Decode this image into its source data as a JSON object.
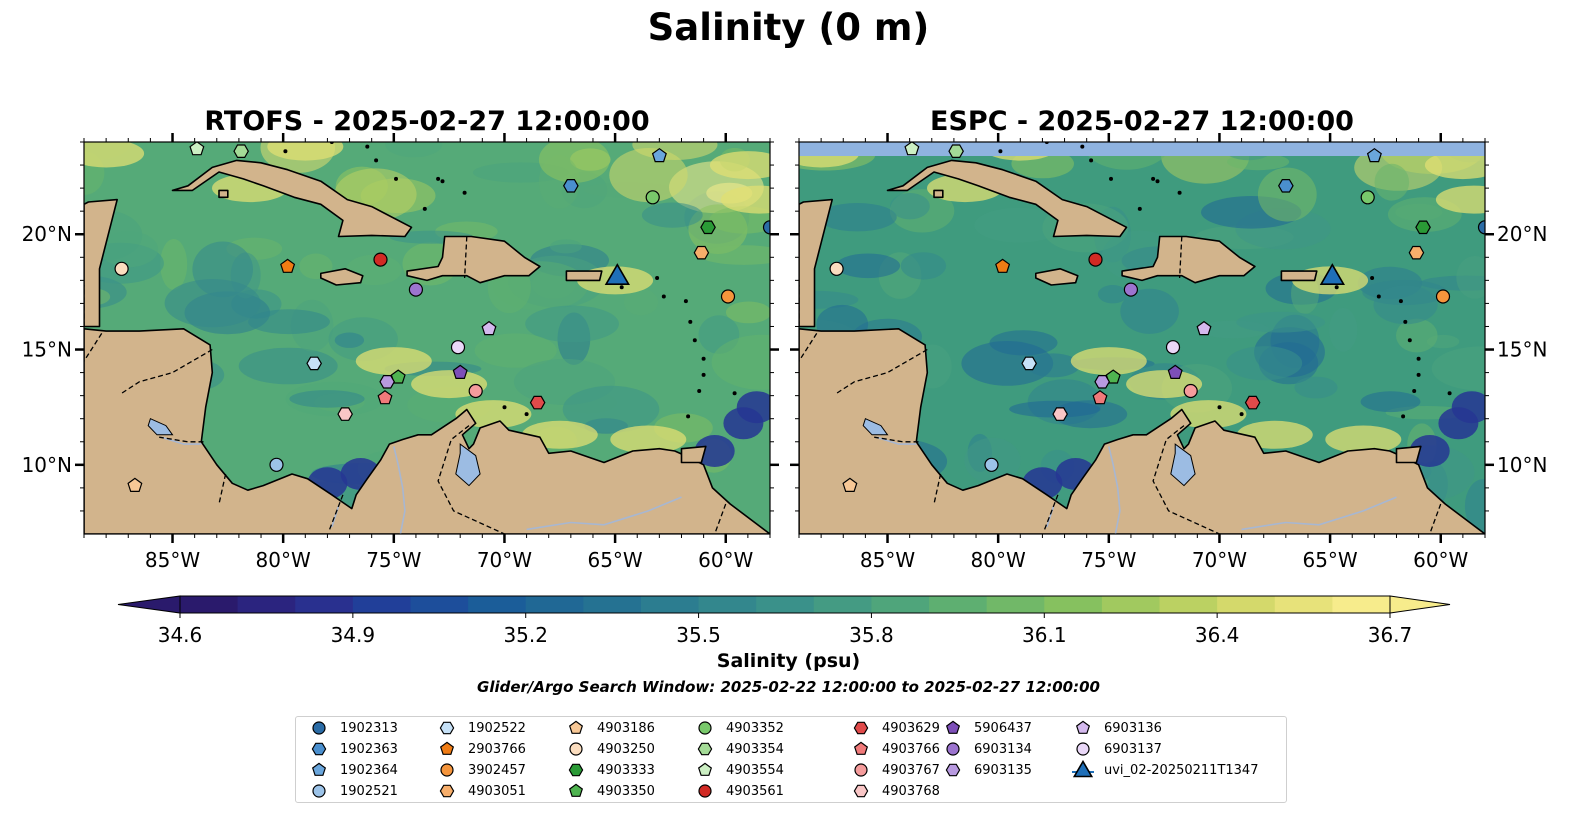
{
  "figure": {
    "title": "Salinity (0 m)",
    "window_text": "Glider/Argo Search Window: 2025-02-22 12:00:00 to 2025-02-27 12:00:00"
  },
  "panels": [
    {
      "title": "RTOFS - 2025-02-27 12:00:00",
      "model": "RTOFS",
      "datetime": "2025-02-27 12:00:00",
      "missing_top_band": false
    },
    {
      "title": "ESPC - 2025-02-27 12:00:00",
      "model": "ESPC",
      "datetime": "2025-02-27 12:00:00",
      "missing_top_band": true
    }
  ],
  "map": {
    "lon_range": [
      -89,
      -58
    ],
    "lat_range": [
      7,
      24
    ],
    "x_ticks": [
      {
        "value": -85,
        "label": "85°W"
      },
      {
        "value": -80,
        "label": "80°W"
      },
      {
        "value": -75,
        "label": "75°W"
      },
      {
        "value": -70,
        "label": "70°W"
      },
      {
        "value": -65,
        "label": "65°W"
      },
      {
        "value": -60,
        "label": "60°W"
      }
    ],
    "y_ticks": [
      {
        "value": 10,
        "label": "10°N"
      },
      {
        "value": 15,
        "label": "15°N"
      },
      {
        "value": 20,
        "label": "20°N"
      }
    ],
    "colors": {
      "land": "#d2b48c",
      "deep_fresh": "#2c1c6b",
      "ocean_mid": "#4aa57c",
      "lake": "#9cbce3",
      "missing": "#8fb3e0"
    }
  },
  "colorbar": {
    "label": "Salinity (psu)",
    "min": 34.6,
    "max": 36.7,
    "ticks": [
      "34.6",
      "34.9",
      "35.2",
      "35.5",
      "35.8",
      "36.1",
      "36.4",
      "36.7"
    ],
    "colormap": "haline",
    "extend": "both"
  },
  "markers": [
    {
      "id": "1902313",
      "lon": -58,
      "lat": 20.3,
      "shape": "circle",
      "color": "#2b6ca6"
    },
    {
      "id": "1902363",
      "lon": -67,
      "lat": 22.1,
      "shape": "hexagon",
      "color": "#4a8fce"
    },
    {
      "id": "1902364",
      "lon": -63,
      "lat": 23.4,
      "shape": "pentagon",
      "color": "#6aa6dc"
    },
    {
      "id": "1902521",
      "lon": -80.3,
      "lat": 10.0,
      "shape": "circle",
      "color": "#9cc3e8"
    },
    {
      "id": "1902522",
      "lon": -78.6,
      "lat": 14.4,
      "shape": "hexagon",
      "color": "#c6e1f7"
    },
    {
      "id": "2903766",
      "lon": -79.8,
      "lat": 18.6,
      "shape": "pentagon",
      "color": "#f07c14"
    },
    {
      "id": "3902457",
      "lon": -59.9,
      "lat": 17.3,
      "shape": "circle",
      "color": "#f5953c"
    },
    {
      "id": "4903051",
      "lon": -61.1,
      "lat": 19.2,
      "shape": "hexagon",
      "color": "#f7ae6b"
    },
    {
      "id": "4903186",
      "lon": -86.7,
      "lat": 9.1,
      "shape": "pentagon",
      "color": "#f8c896"
    },
    {
      "id": "4903250",
      "lon": -87.3,
      "lat": 18.5,
      "shape": "circle",
      "color": "#fbddbf"
    },
    {
      "id": "4903333",
      "lon": -60.8,
      "lat": 20.3,
      "shape": "hexagon",
      "color": "#2a9a36"
    },
    {
      "id": "4903350",
      "lon": -74.8,
      "lat": 13.8,
      "shape": "pentagon",
      "color": "#4fb450"
    },
    {
      "id": "4903352",
      "lon": -63.3,
      "lat": 21.6,
      "shape": "circle",
      "color": "#79c96b"
    },
    {
      "id": "4903354",
      "lon": -81.9,
      "lat": 23.6,
      "shape": "hexagon",
      "color": "#a4db97"
    },
    {
      "id": "4903554",
      "lon": -83.9,
      "lat": 23.7,
      "shape": "pentagon",
      "color": "#ccefc3"
    },
    {
      "id": "4903561",
      "lon": -75.6,
      "lat": 18.9,
      "shape": "circle",
      "color": "#d22a24"
    },
    {
      "id": "4903629",
      "lon": -68.5,
      "lat": 12.7,
      "shape": "hexagon",
      "color": "#e04a4a"
    },
    {
      "id": "4903766",
      "lon": -75.4,
      "lat": 12.9,
      "shape": "pentagon",
      "color": "#f07a7a"
    },
    {
      "id": "4903767",
      "lon": -71.3,
      "lat": 13.2,
      "shape": "circle",
      "color": "#f59c9c"
    },
    {
      "id": "4903768",
      "lon": -77.2,
      "lat": 12.2,
      "shape": "hexagon",
      "color": "#f9c6c6"
    },
    {
      "id": "5906437",
      "lon": -72,
      "lat": 14.0,
      "shape": "pentagon",
      "color": "#7d4fb8"
    },
    {
      "id": "6903134",
      "lon": -74,
      "lat": 17.6,
      "shape": "circle",
      "color": "#9c74cf"
    },
    {
      "id": "6903135",
      "lon": -75.3,
      "lat": 13.6,
      "shape": "hexagon",
      "color": "#b89ae0"
    },
    {
      "id": "6903136",
      "lon": -70.7,
      "lat": 15.9,
      "shape": "pentagon",
      "color": "#d4b9ee"
    },
    {
      "id": "6903137",
      "lon": -72.1,
      "lat": 15.1,
      "shape": "circle",
      "color": "#ead8f8"
    },
    {
      "id": "uvi_02-20250211T1347",
      "lon": -64.9,
      "lat": 18.2,
      "shape": "triangle",
      "color": "#1f6fb8"
    }
  ]
}
